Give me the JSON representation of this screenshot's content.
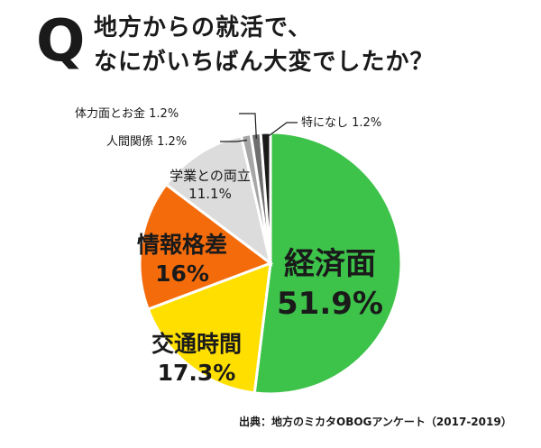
{
  "question": {
    "mark": "Q",
    "line1": "地方からの就活で、",
    "line2": "なにがいちばん大変でしたか？"
  },
  "source": "出典：地方のミカタOBOGアンケート（2017-2019）",
  "chart_data": {
    "type": "pie",
    "unit": "%",
    "start_angle_deg": 0,
    "direction": "clockwise",
    "slices": [
      {
        "label": "経済面",
        "value": 51.9,
        "value_text": "51.9%",
        "color": "#3dc24a"
      },
      {
        "label": "交通時間",
        "value": 17.3,
        "value_text": "17.3%",
        "color": "#ffdf00"
      },
      {
        "label": "情報格差",
        "value": 16,
        "value_text": "16%",
        "color": "#f46b0c"
      },
      {
        "label": "学業との両立",
        "value": 11.1,
        "value_text": "11.1%",
        "color": "#dcdcdc"
      },
      {
        "label": "人間関係",
        "value": 1.2,
        "value_text": "1.2%",
        "color": "#a6a6a6"
      },
      {
        "label": "体力面とお金",
        "value": 1.2,
        "value_text": "1.2%",
        "color": "#6e6e6e"
      },
      {
        "label": "特になし",
        "value": 1.2,
        "value_text": "1.2%",
        "color": "#1a1a1a"
      }
    ]
  }
}
